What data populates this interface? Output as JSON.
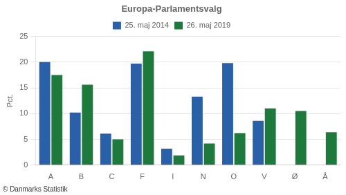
{
  "chart_data": {
    "type": "bar",
    "title": "Europa-Parlamentsvalg",
    "categories": [
      "A",
      "B",
      "C",
      "F",
      "I",
      "N",
      "O",
      "V",
      "Ø",
      "Å"
    ],
    "series": [
      {
        "name": "25. maj 2014",
        "color": "#2960A8",
        "values": [
          20.0,
          10.2,
          6.1,
          19.7,
          3.2,
          13.3,
          19.8,
          8.6,
          0.0,
          0.0
        ]
      },
      {
        "name": "26. maj 2019",
        "color": "#1E7A3C",
        "values": [
          17.5,
          15.6,
          5.0,
          22.1,
          1.9,
          4.2,
          6.2,
          11.0,
          10.5,
          6.4
        ]
      }
    ],
    "ylabel": "Pct.",
    "ylim": [
      0,
      25
    ],
    "yticks": [
      0,
      5,
      10,
      15,
      20,
      25
    ],
    "grid": true,
    "legend": "top",
    "annotations": [
      "© Danmarks Statistik"
    ]
  }
}
